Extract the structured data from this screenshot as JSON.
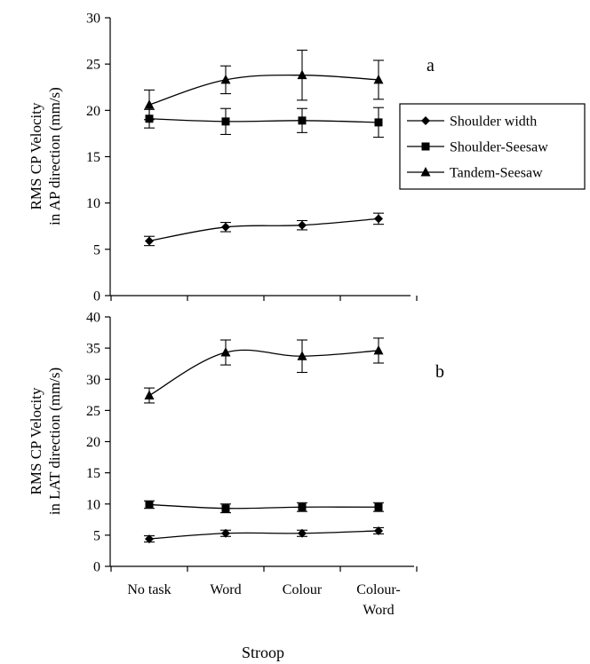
{
  "chart_data": [
    {
      "panel_label": "a",
      "type": "line",
      "categories": [
        "No task",
        "Word",
        "Colour",
        "Colour-\nWord"
      ],
      "ylabel": "RMS CP Velocity\nin AP direction (mm/s)",
      "ylim": [
        0,
        30
      ],
      "yticks": [
        0,
        5,
        10,
        15,
        20,
        25,
        30
      ],
      "grid": false,
      "legend": {
        "placement": "right",
        "entries": [
          "Shoulder width",
          "Shoulder-Seesaw",
          "Tandem-Seesaw"
        ]
      },
      "series": [
        {
          "name": "Shoulder width",
          "marker": "diamond",
          "values": [
            5.9,
            7.4,
            7.6,
            8.3
          ],
          "errors": [
            0.5,
            0.5,
            0.5,
            0.6
          ]
        },
        {
          "name": "Shoulder-Seesaw",
          "marker": "square",
          "values": [
            19.1,
            18.8,
            18.9,
            18.7
          ],
          "errors": [
            1.0,
            1.4,
            1.3,
            1.6
          ]
        },
        {
          "name": "Tandem-Seesaw",
          "marker": "triangle",
          "values": [
            20.6,
            23.3,
            23.8,
            23.3
          ],
          "errors": [
            1.6,
            1.5,
            2.7,
            2.1
          ]
        }
      ]
    },
    {
      "panel_label": "b",
      "type": "line",
      "categories": [
        "No task",
        "Word",
        "Colour",
        "Colour-\nWord"
      ],
      "xlabel": "Stroop",
      "ylabel": "RMS CP Velocity\nin LAT direction (mm/s)",
      "ylim": [
        0,
        40
      ],
      "yticks": [
        0,
        5,
        10,
        15,
        20,
        25,
        30,
        35,
        40
      ],
      "grid": false,
      "series": [
        {
          "name": "Shoulder width",
          "marker": "diamond",
          "values": [
            4.4,
            5.3,
            5.3,
            5.7
          ],
          "errors": [
            0.5,
            0.5,
            0.5,
            0.5
          ]
        },
        {
          "name": "Shoulder-Seesaw",
          "marker": "square",
          "values": [
            9.9,
            9.3,
            9.5,
            9.5
          ],
          "errors": [
            0.6,
            0.7,
            0.7,
            0.7
          ]
        },
        {
          "name": "Tandem-Seesaw",
          "marker": "triangle",
          "values": [
            27.4,
            34.3,
            33.7,
            34.6
          ],
          "errors": [
            1.2,
            2.0,
            2.6,
            2.0
          ]
        }
      ]
    }
  ]
}
